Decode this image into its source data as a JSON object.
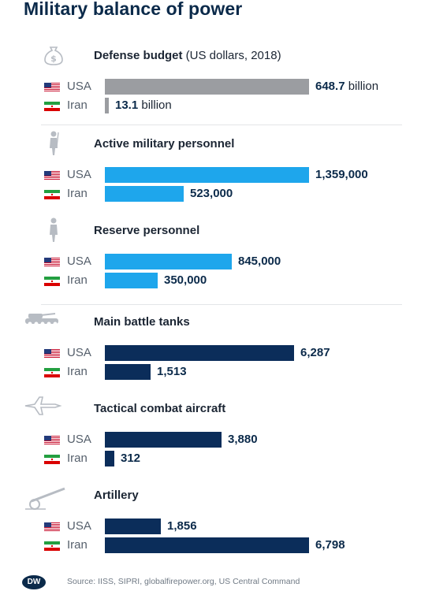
{
  "header": {
    "title": "Military balance of power"
  },
  "chart_data": {
    "type": "bar",
    "orientation": "horizontal",
    "categories": [
      "USA",
      "Iran"
    ],
    "panels": [
      {
        "key": "defense",
        "title": "Defense budget",
        "unit_label": "(US dollars, 2018)",
        "icon": "money-bag-icon",
        "color": "#9b9da1",
        "max": 648.7,
        "value_suffix": " billion",
        "values": [
          648.7,
          13.1
        ],
        "labels": [
          "648.7",
          "13.1"
        ]
      },
      {
        "key": "active",
        "title": "Active military personnel",
        "icon": "soldier-icon",
        "color": "#1ea6ec",
        "max": 1359000,
        "values": [
          1359000,
          523000
        ],
        "labels": [
          "1,359,000",
          "523,000"
        ]
      },
      {
        "key": "reserve",
        "title": "Reserve personnel",
        "icon": "reserve-soldier-icon",
        "color": "#1ea6ec",
        "max": 1359000,
        "values": [
          845000,
          350000
        ],
        "labels": [
          "845,000",
          "350,000"
        ]
      },
      {
        "key": "tanks",
        "title": "Main battle tanks",
        "icon": "tank-icon",
        "color": "#0b2d5a",
        "max": 6798,
        "values": [
          6287,
          1513
        ],
        "labels": [
          "6,287",
          "1,513"
        ]
      },
      {
        "key": "aircraft",
        "title": "Tactical combat aircraft",
        "icon": "fighter-jet-icon",
        "color": "#0b2d5a",
        "max": 6798,
        "values": [
          3880,
          312
        ],
        "labels": [
          "3,880",
          "312"
        ]
      },
      {
        "key": "artillery",
        "title": "Artillery",
        "icon": "artillery-icon",
        "color": "#0b2d5a",
        "max": 6798,
        "values": [
          1856,
          6798
        ],
        "labels": [
          "1,856",
          "6,798"
        ]
      }
    ],
    "colors": {
      "usa_flag": "usa-flag-icon",
      "iran_flag": "iran-flag-icon"
    }
  },
  "footer": {
    "logo": "DW",
    "source": "Source: IISS, SIPRI, globalfirepower.org, US Central Command"
  }
}
